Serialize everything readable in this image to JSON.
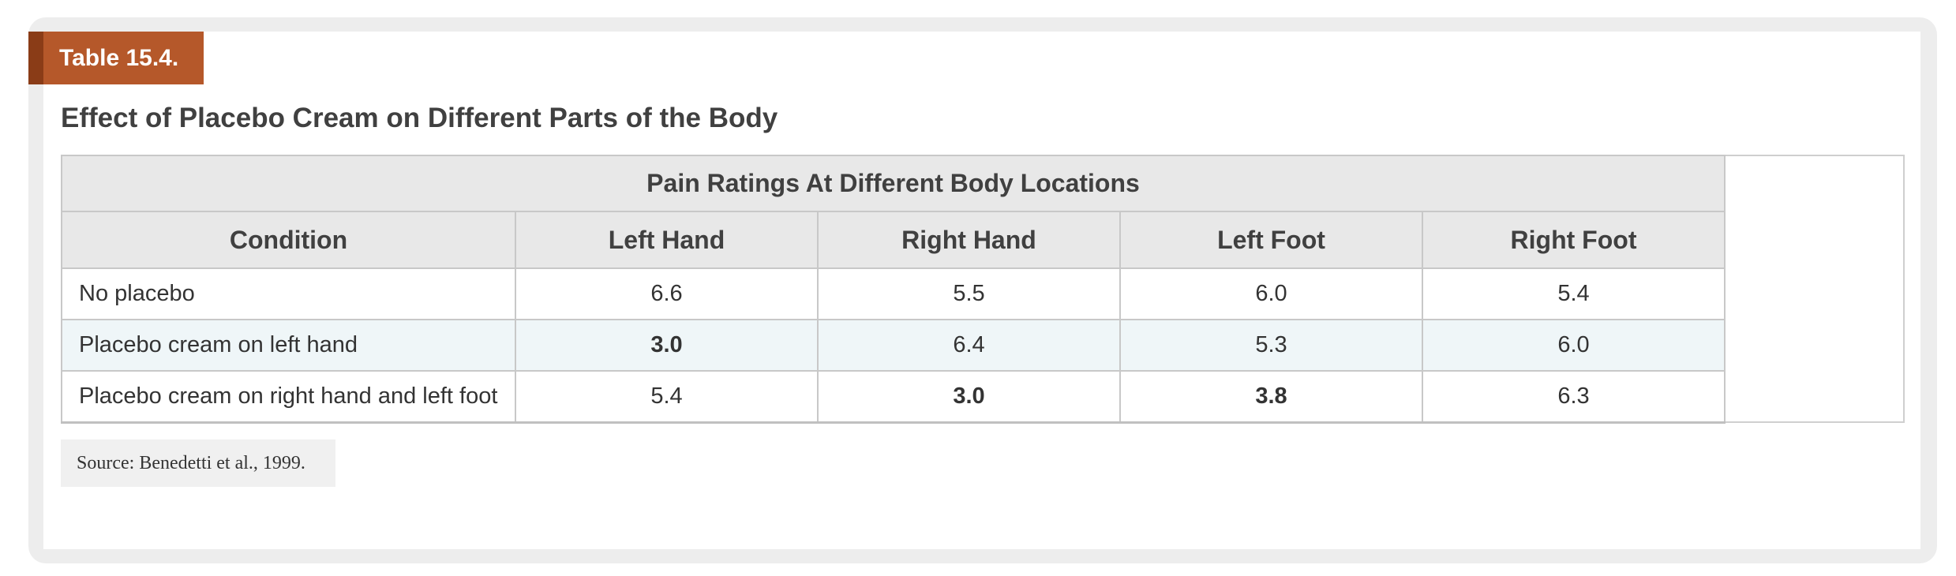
{
  "table_label": "Table 15.4.",
  "caption": "Effect of Placebo Cream on Different Parts of the Body",
  "group_header": "Pain Ratings At Different Body Locations",
  "columns": [
    "Condition",
    "Left Hand",
    "Right Hand",
    "Left Foot",
    "Right Foot"
  ],
  "rows": [
    {
      "condition": "No placebo",
      "values": [
        "6.6",
        "5.5",
        "6.0",
        "5.4"
      ],
      "bold": [
        false,
        false,
        false,
        false
      ]
    },
    {
      "condition": "Placebo cream on left hand",
      "values": [
        "3.0",
        "6.4",
        "5.3",
        "6.0"
      ],
      "bold": [
        true,
        false,
        false,
        false
      ]
    },
    {
      "condition": "Placebo cream on right hand and left foot",
      "values": [
        "5.4",
        "3.0",
        "3.8",
        "6.3"
      ],
      "bold": [
        false,
        true,
        true,
        false
      ]
    }
  ],
  "source": "Source: Benedetti et al., 1999."
}
